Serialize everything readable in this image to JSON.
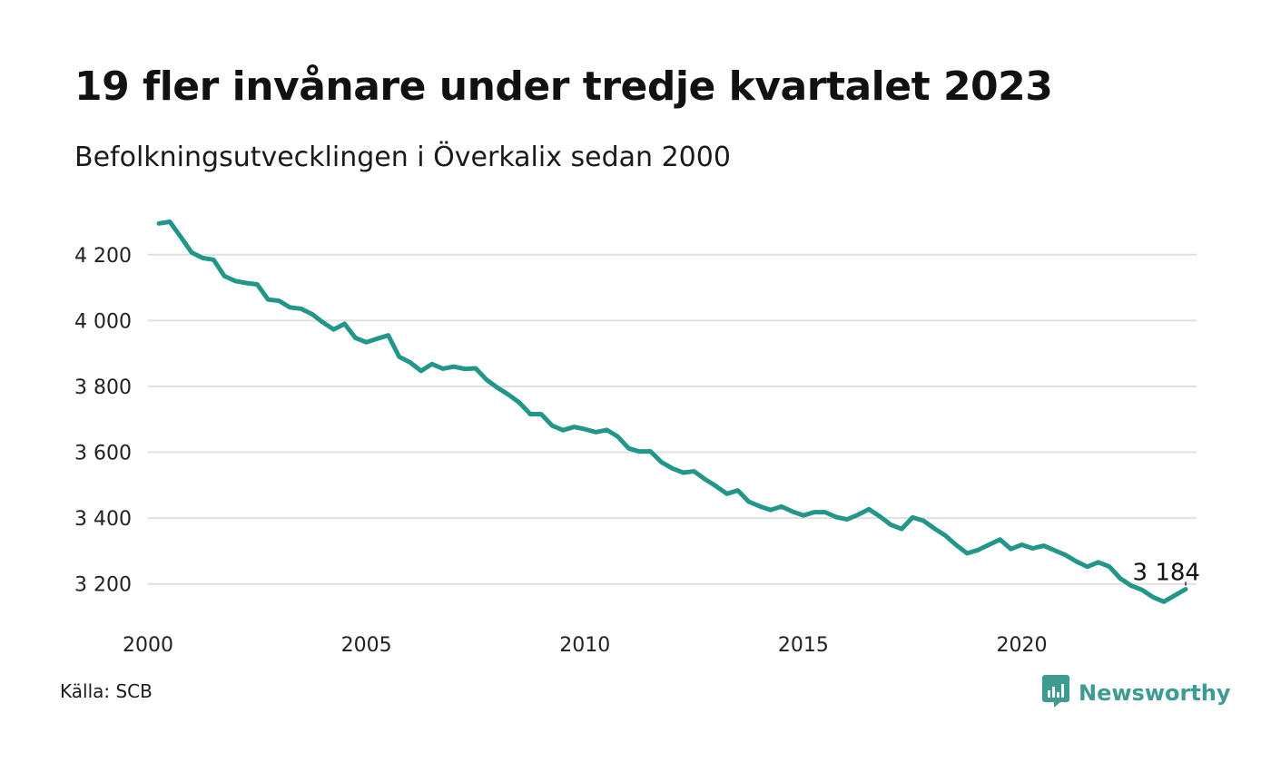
{
  "header": {
    "title": "19 fler invånare under tredje kvartalet 2023",
    "subtitle": "Befolkningsutvecklingen i Överkalix sedan 2000"
  },
  "footer": {
    "source": "Källa: SCB",
    "brand": "Newsworthy",
    "brand_icon": "chart-bubble-icon"
  },
  "colors": {
    "line": "#23968a",
    "grid": "#e0e0e0",
    "brand": "#3d9b92"
  },
  "chart_data": {
    "type": "line",
    "title": "19 fler invånare under tredje kvartalet 2023",
    "subtitle": "Befolkningsutvecklingen i Överkalix sedan 2000",
    "xlabel": "",
    "ylabel": "",
    "x_ticks": [
      2000,
      2005,
      2010,
      2015,
      2020
    ],
    "x_tick_labels": [
      "2000",
      "2005",
      "2010",
      "2015",
      "2020"
    ],
    "y_ticks": [
      3200,
      3400,
      3600,
      3800,
      4000,
      4200
    ],
    "y_tick_labels": [
      "3 200",
      "3 400",
      "3 600",
      "3 800",
      "4 000",
      "4 200"
    ],
    "xlim": [
      2000,
      2024
    ],
    "ylim": [
      3100,
      4340
    ],
    "grid": "horizontal",
    "end_label": "3 184",
    "series": [
      {
        "x": [
          2000.25,
          2000.5,
          2000.75,
          2001.0,
          2001.25,
          2001.5,
          2001.75,
          2002.0,
          2002.25,
          2002.5,
          2002.75,
          2003.0,
          2003.25,
          2003.5,
          2003.75,
          2004.0,
          2004.25,
          2004.5,
          2004.75,
          2005.0,
          2005.25,
          2005.5,
          2005.75,
          2006.0,
          2006.25,
          2006.5,
          2006.75,
          2007.0,
          2007.25,
          2007.5,
          2007.75,
          2008.0,
          2008.25,
          2008.5,
          2008.75,
          2009.0,
          2009.25,
          2009.5,
          2009.75,
          2010.0,
          2010.25,
          2010.5,
          2010.75,
          2011.0,
          2011.25,
          2011.5,
          2011.75,
          2012.0,
          2012.25,
          2012.5,
          2012.75,
          2013.0,
          2013.25,
          2013.5,
          2013.75,
          2014.0,
          2014.25,
          2014.5,
          2014.75,
          2015.0,
          2015.25,
          2015.5,
          2015.75,
          2016.0,
          2016.25,
          2016.5,
          2016.75,
          2017.0,
          2017.25,
          2017.5,
          2017.75,
          2018.0,
          2018.25,
          2018.5,
          2018.75,
          2019.0,
          2019.25,
          2019.5,
          2019.75,
          2020.0,
          2020.25,
          2020.5,
          2020.75,
          2021.0,
          2021.25,
          2021.5,
          2021.75,
          2022.0,
          2022.25,
          2022.5,
          2022.75,
          2023.0,
          2023.25,
          2023.5,
          2023.75
        ],
        "values": [
          4295,
          4300,
          4254,
          4207,
          4190,
          4185,
          4135,
          4120,
          4114,
          4110,
          4064,
          4060,
          4040,
          4036,
          4020,
          3995,
          3973,
          3990,
          3947,
          3934,
          3945,
          3955,
          3890,
          3873,
          3847,
          3868,
          3854,
          3860,
          3853,
          3855,
          3820,
          3796,
          3775,
          3751,
          3716,
          3716,
          3681,
          3667,
          3677,
          3670,
          3661,
          3668,
          3648,
          3612,
          3602,
          3603,
          3570,
          3551,
          3538,
          3542,
          3518,
          3497,
          3474,
          3484,
          3450,
          3436,
          3425,
          3435,
          3420,
          3408,
          3418,
          3418,
          3403,
          3396,
          3410,
          3427,
          3405,
          3380,
          3367,
          3402,
          3392,
          3368,
          3347,
          3318,
          3293,
          3303,
          3319,
          3335,
          3306,
          3319,
          3308,
          3316,
          3302,
          3288,
          3268,
          3252,
          3266,
          3253,
          3217,
          3195,
          3182,
          3160,
          3146,
          3165,
          3184
        ]
      }
    ]
  }
}
